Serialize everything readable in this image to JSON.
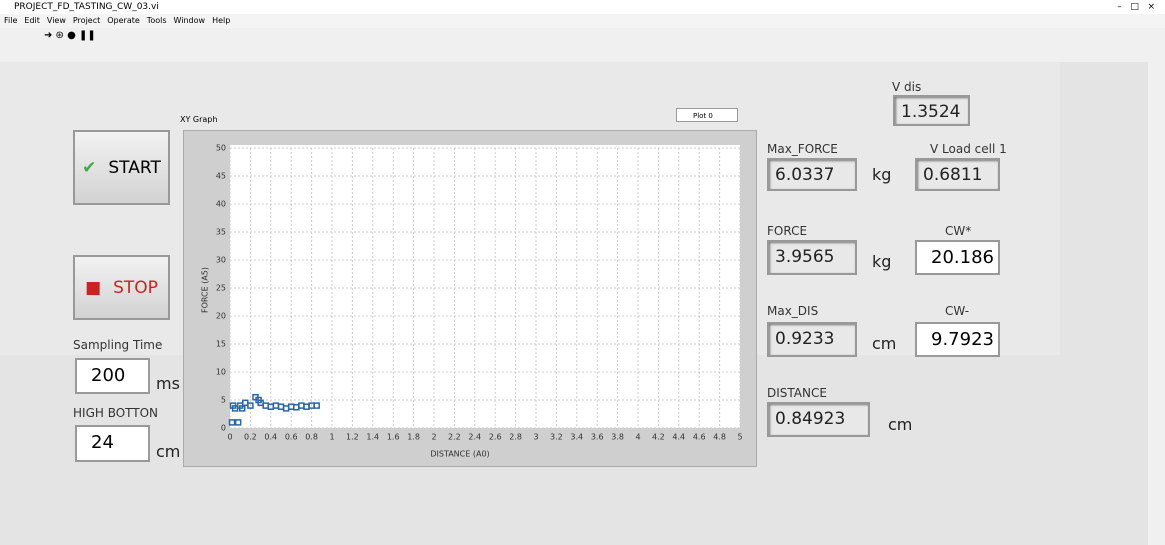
{
  "window": {
    "title": "PROJECT_FD_TASTING_CW_03.vi",
    "menu": [
      "File",
      "Edit",
      "View",
      "Project",
      "Operate",
      "Tools",
      "Window",
      "Help"
    ]
  },
  "controls": {
    "start": "START",
    "stop": "STOP",
    "sampling_time": {
      "label": "Sampling Time",
      "value": "200",
      "unit": "ms"
    },
    "high_botton": {
      "label": "HIGH BOTTON",
      "value": "24",
      "unit": "cm"
    }
  },
  "indicators": {
    "v_dis": {
      "label": "V dis",
      "value": "1.3524"
    },
    "max_force": {
      "label": "Max_FORCE",
      "value": "6.0337",
      "unit": "kg"
    },
    "v_load_cell": {
      "label": "V Load cell 1",
      "value": "0.6811"
    },
    "force": {
      "label": "FORCE",
      "value": "3.9565",
      "unit": "kg"
    },
    "cw_plus": {
      "label": "CW*",
      "value": "20.186"
    },
    "max_dis": {
      "label": "Max_DIS",
      "value": "0.9233",
      "unit": "cm"
    },
    "cw_minus": {
      "label": "CW-",
      "value": "9.7923"
    },
    "distance": {
      "label": "DISTANCE",
      "value": "0.84923",
      "unit": "cm"
    }
  },
  "chart_data": {
    "type": "scatter",
    "title": "XY Graph",
    "legend": "Plot 0",
    "x_label": "DISTANCE (A0)",
    "y_label": "FORCE (A5)",
    "color": "#2a64a8",
    "grid": true,
    "x": [
      0.02,
      0.03,
      0.05,
      0.08,
      0.1,
      0.12,
      0.15,
      0.2,
      0.25,
      0.28,
      0.3,
      0.35,
      0.4,
      0.45,
      0.5,
      0.55,
      0.6,
      0.65,
      0.7,
      0.75,
      0.8,
      0.85
    ],
    "values": [
      1,
      4,
      3.5,
      1,
      4,
      3.5,
      4.5,
      4,
      5.5,
      5,
      4.5,
      4,
      3.8,
      4,
      3.8,
      3.5,
      3.8,
      3.7,
      4,
      3.8,
      4,
      4
    ],
    "xlim": [
      0,
      5
    ],
    "ylim": [
      0,
      50
    ],
    "xticks": [
      0,
      0.2,
      0.4,
      0.6,
      0.8,
      1,
      1.2,
      1.4,
      1.6,
      1.8,
      2,
      2.2,
      2.4,
      2.6,
      2.8,
      3,
      3.2,
      3.4,
      3.6,
      3.8,
      4,
      4.2,
      4.4,
      4.6,
      4.8,
      5
    ],
    "yticks": [
      0,
      5,
      10,
      15,
      20,
      25,
      30,
      35,
      40,
      45,
      50
    ]
  }
}
